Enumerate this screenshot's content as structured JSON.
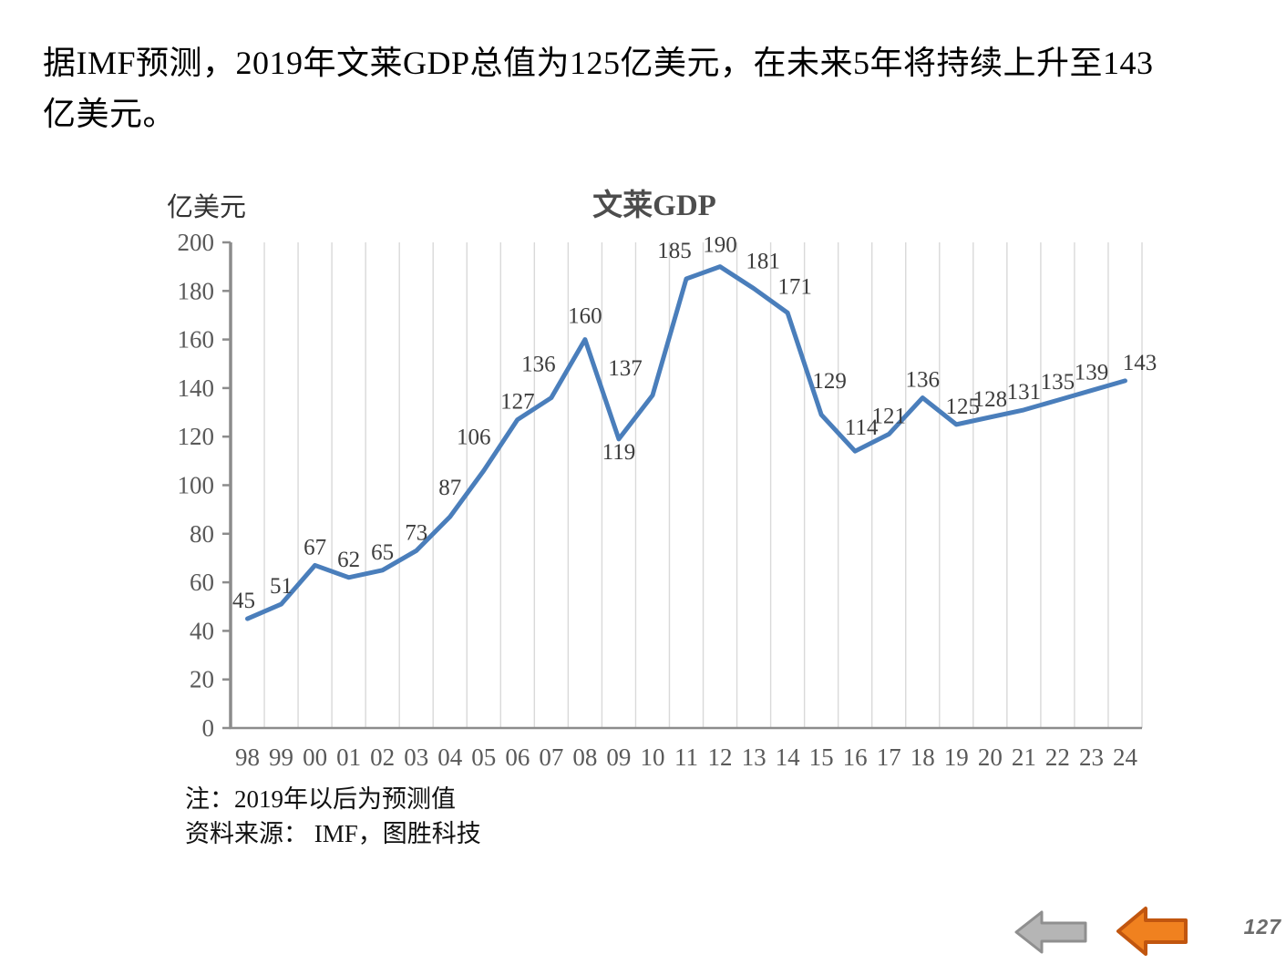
{
  "slide": {
    "headline_line1": "据IMF预测，2019年文莱GDP总值为125亿美元，在未来5年将持续上升至143",
    "headline_line2": "亿美元。",
    "page_number": "127"
  },
  "chart_data": {
    "type": "line",
    "title": "文莱GDP",
    "ylabel": "亿美元",
    "xlabel": "",
    "categories": [
      "98",
      "99",
      "00",
      "01",
      "02",
      "03",
      "04",
      "05",
      "06",
      "07",
      "08",
      "09",
      "10",
      "11",
      "12",
      "13",
      "14",
      "15",
      "16",
      "17",
      "18",
      "19",
      "20",
      "21",
      "22",
      "23",
      "24"
    ],
    "values": [
      45,
      51,
      67,
      62,
      65,
      73,
      87,
      106,
      127,
      136,
      160,
      119,
      137,
      185,
      190,
      181,
      171,
      129,
      114,
      121,
      136,
      125,
      128,
      131,
      135,
      139,
      143
    ],
    "ylim": [
      0,
      200
    ],
    "y_tick_step": 20,
    "grid": "vertical-only",
    "legend": "none",
    "data_labels": "on",
    "colors": {
      "line": "#4a7ebb",
      "grid": "#d9d9d9",
      "axis": "#8c8c8c",
      "tick_label": "#595959",
      "data_label": "#3d3d3d"
    }
  },
  "notes": {
    "forecast_note": "注：2019年以后为预测值",
    "source": "资料来源： IMF，图胜科技"
  },
  "nav": {
    "back_button": {
      "shape": "left-arrow",
      "fill": "#b5b5b5",
      "border": "#8f8f8f"
    },
    "prev_button": {
      "shape": "left-arrow",
      "fill": "#f0811f",
      "border": "#c1560f"
    }
  }
}
